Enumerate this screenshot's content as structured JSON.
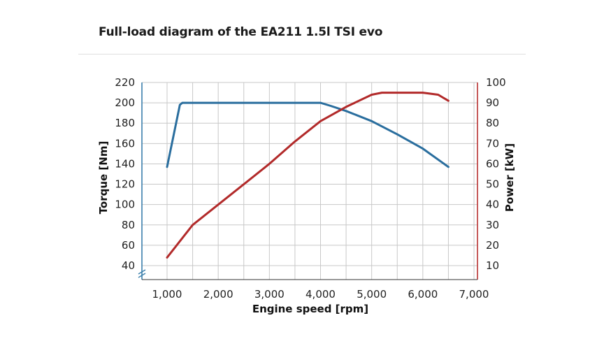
{
  "chart_data": {
    "type": "line",
    "title": "Full-load diagram of the EA211 1.5l TSI evo",
    "xlabel": "Engine speed [rpm]",
    "ylabel_left": "Torque [Nm]",
    "ylabel_right": "Power [kW]",
    "xlim": [
      1000,
      7000
    ],
    "x_ticks": [
      {
        "value": 1000,
        "label": "1,000"
      },
      {
        "value": 2000,
        "label": "2,000"
      },
      {
        "value": 3000,
        "label": "3,000"
      },
      {
        "value": 4000,
        "label": "4,000"
      },
      {
        "value": 5000,
        "label": "5,000"
      },
      {
        "value": 6000,
        "label": "6,000"
      },
      {
        "value": 7000,
        "label": "7,000"
      }
    ],
    "ylim_left": [
      30,
      220
    ],
    "y_left_ticks": [
      40,
      60,
      80,
      100,
      120,
      140,
      160,
      180,
      200,
      220
    ],
    "ylim_right": [
      5,
      100
    ],
    "y_right_ticks": [
      10,
      20,
      30,
      40,
      50,
      60,
      70,
      80,
      90,
      100
    ],
    "grid": true,
    "axis_break": "y",
    "series": [
      {
        "axis": "left",
        "color": "#2a6e9e",
        "points": [
          [
            1000,
            137
          ],
          [
            1250,
            198
          ],
          [
            1300,
            200
          ],
          [
            2000,
            200
          ],
          [
            3000,
            200
          ],
          [
            4000,
            200
          ],
          [
            4200,
            197
          ],
          [
            4500,
            192
          ],
          [
            5000,
            182
          ],
          [
            5500,
            169
          ],
          [
            6000,
            155
          ],
          [
            6500,
            137
          ]
        ]
      },
      {
        "axis": "right",
        "color": "#b22a2a",
        "points": [
          [
            1000,
            14
          ],
          [
            1500,
            30
          ],
          [
            2000,
            40
          ],
          [
            2500,
            50
          ],
          [
            3000,
            60
          ],
          [
            3500,
            71
          ],
          [
            4000,
            81
          ],
          [
            4500,
            88
          ],
          [
            5000,
            94
          ],
          [
            5200,
            95
          ],
          [
            5500,
            95
          ],
          [
            6000,
            95
          ],
          [
            6300,
            94
          ],
          [
            6500,
            91
          ]
        ]
      }
    ]
  }
}
